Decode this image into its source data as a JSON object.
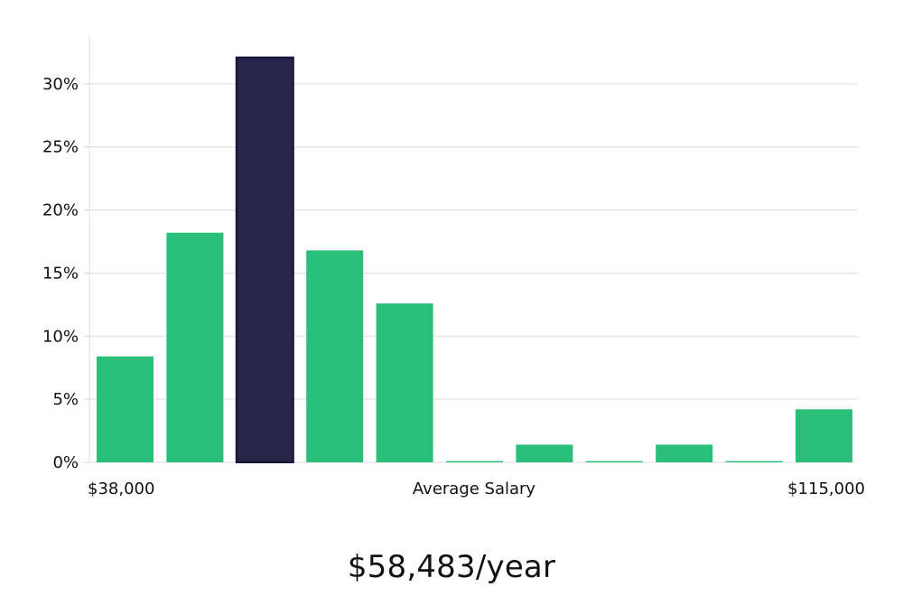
{
  "chart_data": {
    "type": "bar",
    "title": "",
    "xlabel": "Average Salary",
    "ylabel": "",
    "x_min_label": "$38,000",
    "x_max_label": "$115,000",
    "yticks": [
      0,
      5,
      10,
      15,
      20,
      25,
      30
    ],
    "ytick_labels": [
      "0%",
      "5%",
      "10%",
      "15%",
      "20%",
      "25%",
      "30%"
    ],
    "ylim": [
      0,
      33.5
    ],
    "grid": true,
    "highlight_index": 2,
    "values": [
      8.4,
      18.2,
      32.1,
      16.8,
      12.6,
      0.1,
      1.4,
      0.1,
      1.4,
      0.1,
      4.2
    ],
    "colors": {
      "bar": "#2abf78",
      "highlight": "#28244a",
      "highlight_stroke": "#161334"
    }
  },
  "salary": {
    "average_text": "$58,483/year"
  }
}
